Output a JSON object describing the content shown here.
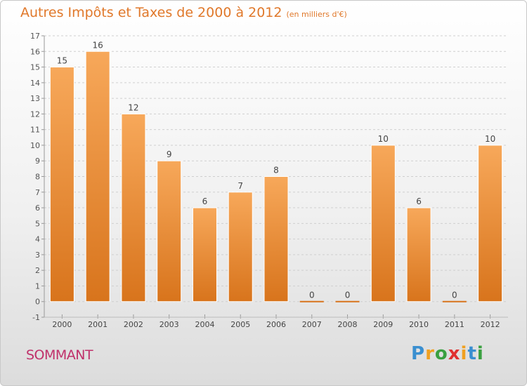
{
  "header": {
    "title": "Autres Impôts et Taxes de 2000 à 2012",
    "subtitle": "(en milliers d'€)"
  },
  "footer": {
    "commune": "SOMMANT",
    "logo_letters": [
      "P",
      "r",
      "o",
      "x",
      "i",
      "t",
      "i"
    ],
    "logo_colors": [
      "#3a8fd0",
      "#f0a020",
      "#3aa040",
      "#e03030",
      "#f0a020",
      "#3a8fd0",
      "#3aa040"
    ]
  },
  "colors": {
    "bar_top": "#f7a85a",
    "bar_bottom": "#d8741c",
    "grid": "#cfcfcf",
    "title": "#e0782a",
    "commune": "#c0306a"
  },
  "chart_data": {
    "type": "bar",
    "categories": [
      "2000",
      "2001",
      "2002",
      "2003",
      "2004",
      "2005",
      "2006",
      "2007",
      "2008",
      "2009",
      "2010",
      "2011",
      "2012"
    ],
    "values": [
      15,
      16,
      12,
      9,
      6,
      7,
      8,
      0,
      0,
      10,
      6,
      0,
      10
    ],
    "data_labels": [
      "15",
      "16",
      "12",
      "9",
      "6",
      "7",
      "8",
      "0",
      "0",
      "10",
      "6",
      "0",
      "10"
    ],
    "yticks": [
      -1,
      0,
      1,
      2,
      3,
      4,
      5,
      6,
      7,
      8,
      9,
      10,
      11,
      12,
      13,
      14,
      15,
      16,
      17
    ],
    "ylim": [
      -1,
      17
    ],
    "grid": true,
    "title": "Autres Impôts et Taxes de 2000 à 2012",
    "ylabel": "(en milliers d'€)"
  }
}
